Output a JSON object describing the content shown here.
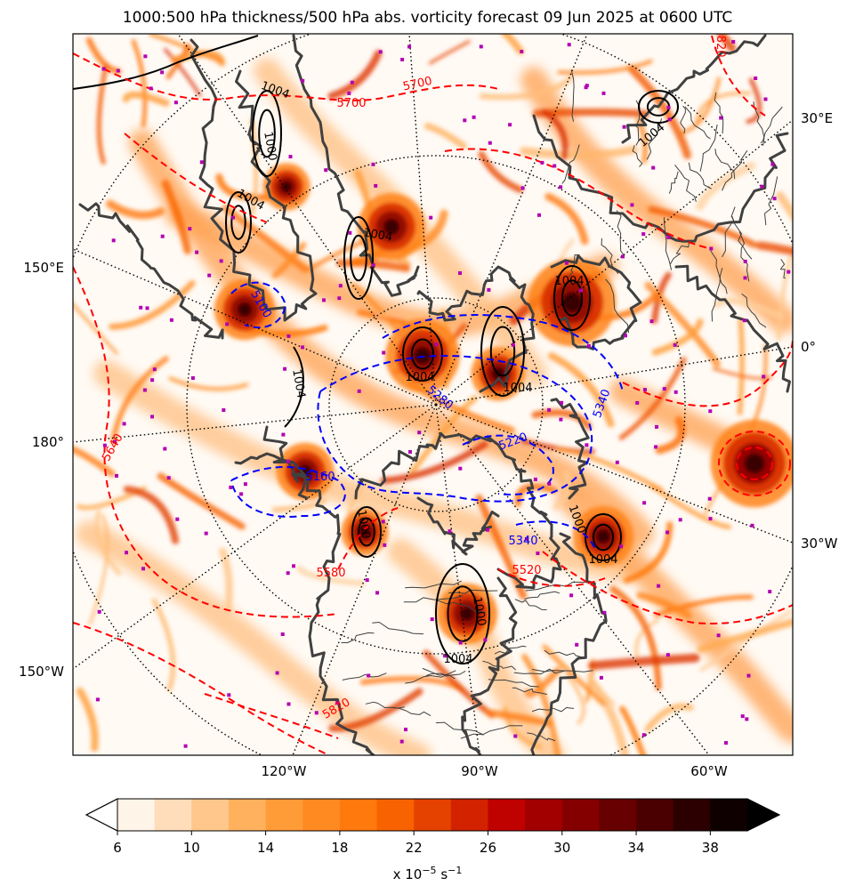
{
  "title": "1000:500 hPa thickness/500 hPa abs. vorticity forecast 09 Jun 2025 at 0600 UTC",
  "colors": {
    "thickness_warm": "#ff0000",
    "thickness_cold": "#0000ff",
    "pressure": "#000000",
    "coastline": "#404040",
    "markers": "#b400b4",
    "graticule": "#000000"
  },
  "map": {
    "longitude_labels_left": [
      "150°E",
      "180°",
      "150°W"
    ],
    "longitude_labels_right": [
      "30°E",
      "0°",
      "30°W"
    ],
    "longitude_labels_bottom": [
      "120°W",
      "90°W",
      "60°W"
    ]
  },
  "chart_data": {
    "type": "heatmap",
    "variable": "500 hPa absolute vorticity",
    "forecast_time": "09 Jun 2025 at 0600 UTC",
    "colorbar": {
      "min": 6,
      "max": 40,
      "step": 2,
      "ticks": [
        "6",
        "10",
        "14",
        "18",
        "22",
        "26",
        "30",
        "34",
        "38"
      ],
      "label": "x 10",
      "label_exp": "−5",
      "label_unit": " s",
      "label_unit_exp": "−1",
      "extend": "both"
    },
    "contour_labels": {
      "thickness_warm": [
        "5640",
        "5700",
        "5700",
        "5820",
        "5820",
        "5580",
        "5520"
      ],
      "thickness_cold": [
        "5100",
        "5280",
        "5220",
        "5340",
        "5160",
        "5340"
      ],
      "pressure": [
        "1004",
        "1004",
        "1004",
        "1004",
        "1004",
        "1004",
        "1004",
        "1004",
        "1004",
        "1004",
        "1000",
        "1000",
        "1000",
        "1000"
      ]
    }
  }
}
